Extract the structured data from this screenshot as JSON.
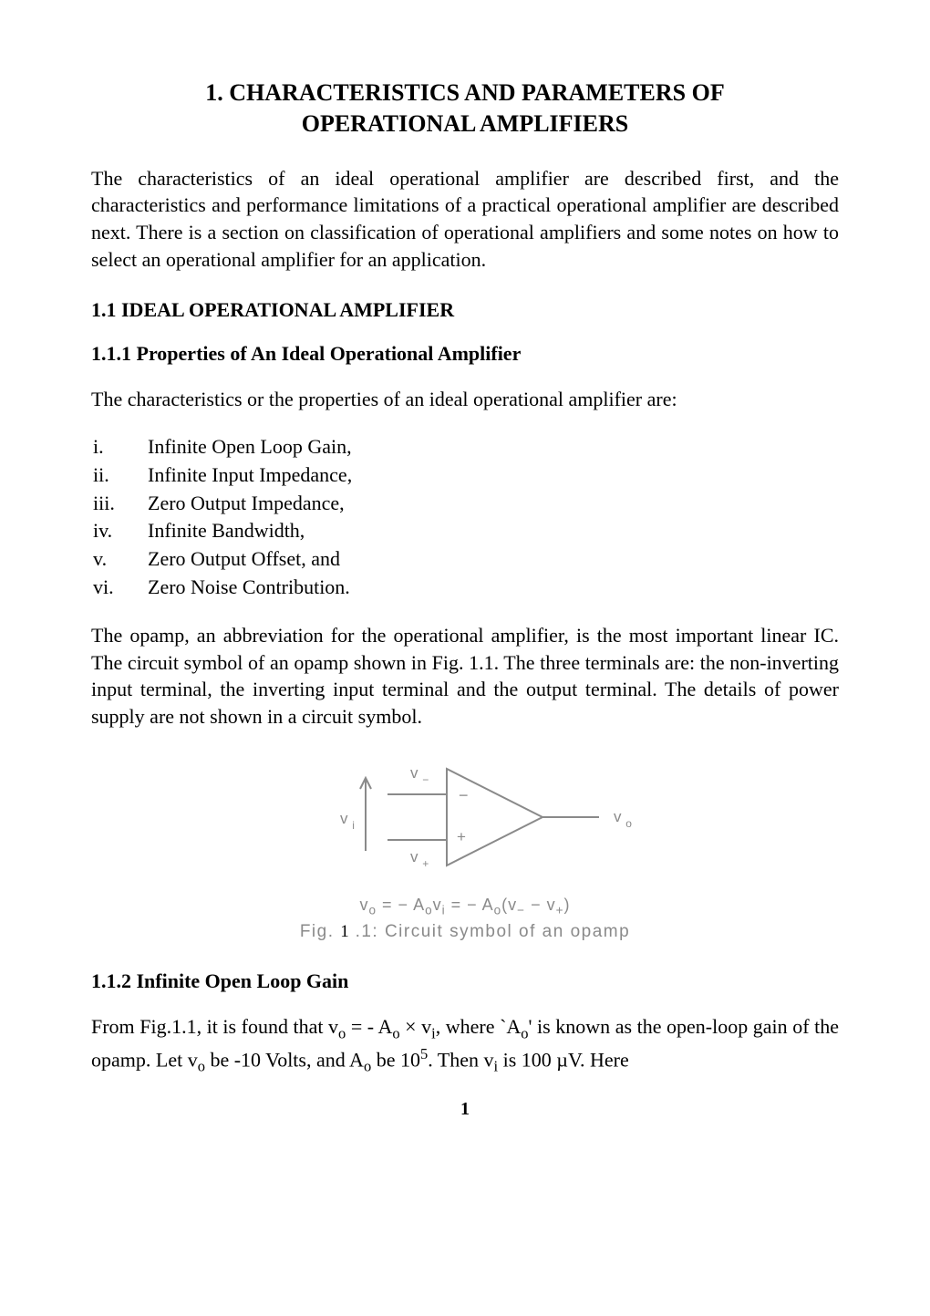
{
  "title_line1": "1. CHARACTERISTICS AND PARAMETERS OF",
  "title_line2": "OPERATIONAL AMPLIFIERS",
  "intro": "The characteristics of an ideal operational amplifier are described first, and the characteristics and performance limitations of a practical operational amplifier are described  next.  There is a section on classification of operational amplifiers and some notes on how to select an operational amplifier for an application.",
  "sec11": "1.1 IDEAL OPERATIONAL AMPLIFIER",
  "sec111": "1.1.1 Properties of An Ideal Operational Amplifier",
  "props_lead": "The characteristics or the properties of an ideal operational amplifier are:",
  "roman_items": [
    {
      "num": "i.",
      "text": "Infinite Open Loop Gain,"
    },
    {
      "num": "ii.",
      "text": "Infinite Input Impedance,"
    },
    {
      "num": "iii.",
      "text": "Zero Output Impedance,"
    },
    {
      "num": "iv.",
      "text": "Infinite Bandwidth,"
    },
    {
      "num": "v.",
      "text": "Zero Output Offset, and"
    },
    {
      "num": "vi.",
      "text": "Zero Noise Contribution."
    }
  ],
  "opamp_para": "The opamp, an abbreviation for the operational amplifier, is the most important linear IC.  The circuit  symbol of an opamp shown in Fig. 1.1.  The three terminals are: the non-inverting input terminal, the inverting input terminal and the output terminal.   The details of power supply are not shown in a circuit symbol.",
  "figure": {
    "stroke_color": "#8a8a8a",
    "label_color": "#8a8a8a",
    "label_font": "Arial, Helvetica, sans-serif",
    "label_fontsize": 17,
    "vi_label": "v",
    "vi_sub": "i",
    "vminus_label": "v",
    "vminus_sub": "−",
    "vplus_label": "v",
    "vplus_sub": "+",
    "vo_label": "v",
    "vo_sub": "o",
    "minus_sign": "−",
    "plus_sign": "+",
    "eq_prefix": "v",
    "eq_sub1": "o",
    "eq_mid1": " = − A",
    "eq_sub2": "o",
    "eq_mid2": "v",
    "eq_sub3": "i",
    "eq_mid3": " = − A",
    "eq_sub4": "o",
    "eq_mid4": "(v",
    "eq_sub5": "−",
    "eq_mid5": " − v",
    "eq_sub6": "+",
    "eq_tail": ")",
    "caption_pre": "Fig.",
    "caption_num": "1",
    "caption_post": ".1: Circuit symbol of an opamp"
  },
  "sec112": "1.1.2 Infinite Open Loop Gain",
  "final_para_html": "From Fig.1.1, it is found that  v<sub>o</sub> = - A<sub>o</sub> × v<sub>i</sub>,  where `A<sub>o</sub>' is known as the open-loop gain of the opamp.  Let v<sub>o</sub> be  -10 Volts, and A<sub>o</sub> be 10<sup>5</sup>. Then v<sub>i</sub> is 100 µV.   Here",
  "page_number": "1"
}
